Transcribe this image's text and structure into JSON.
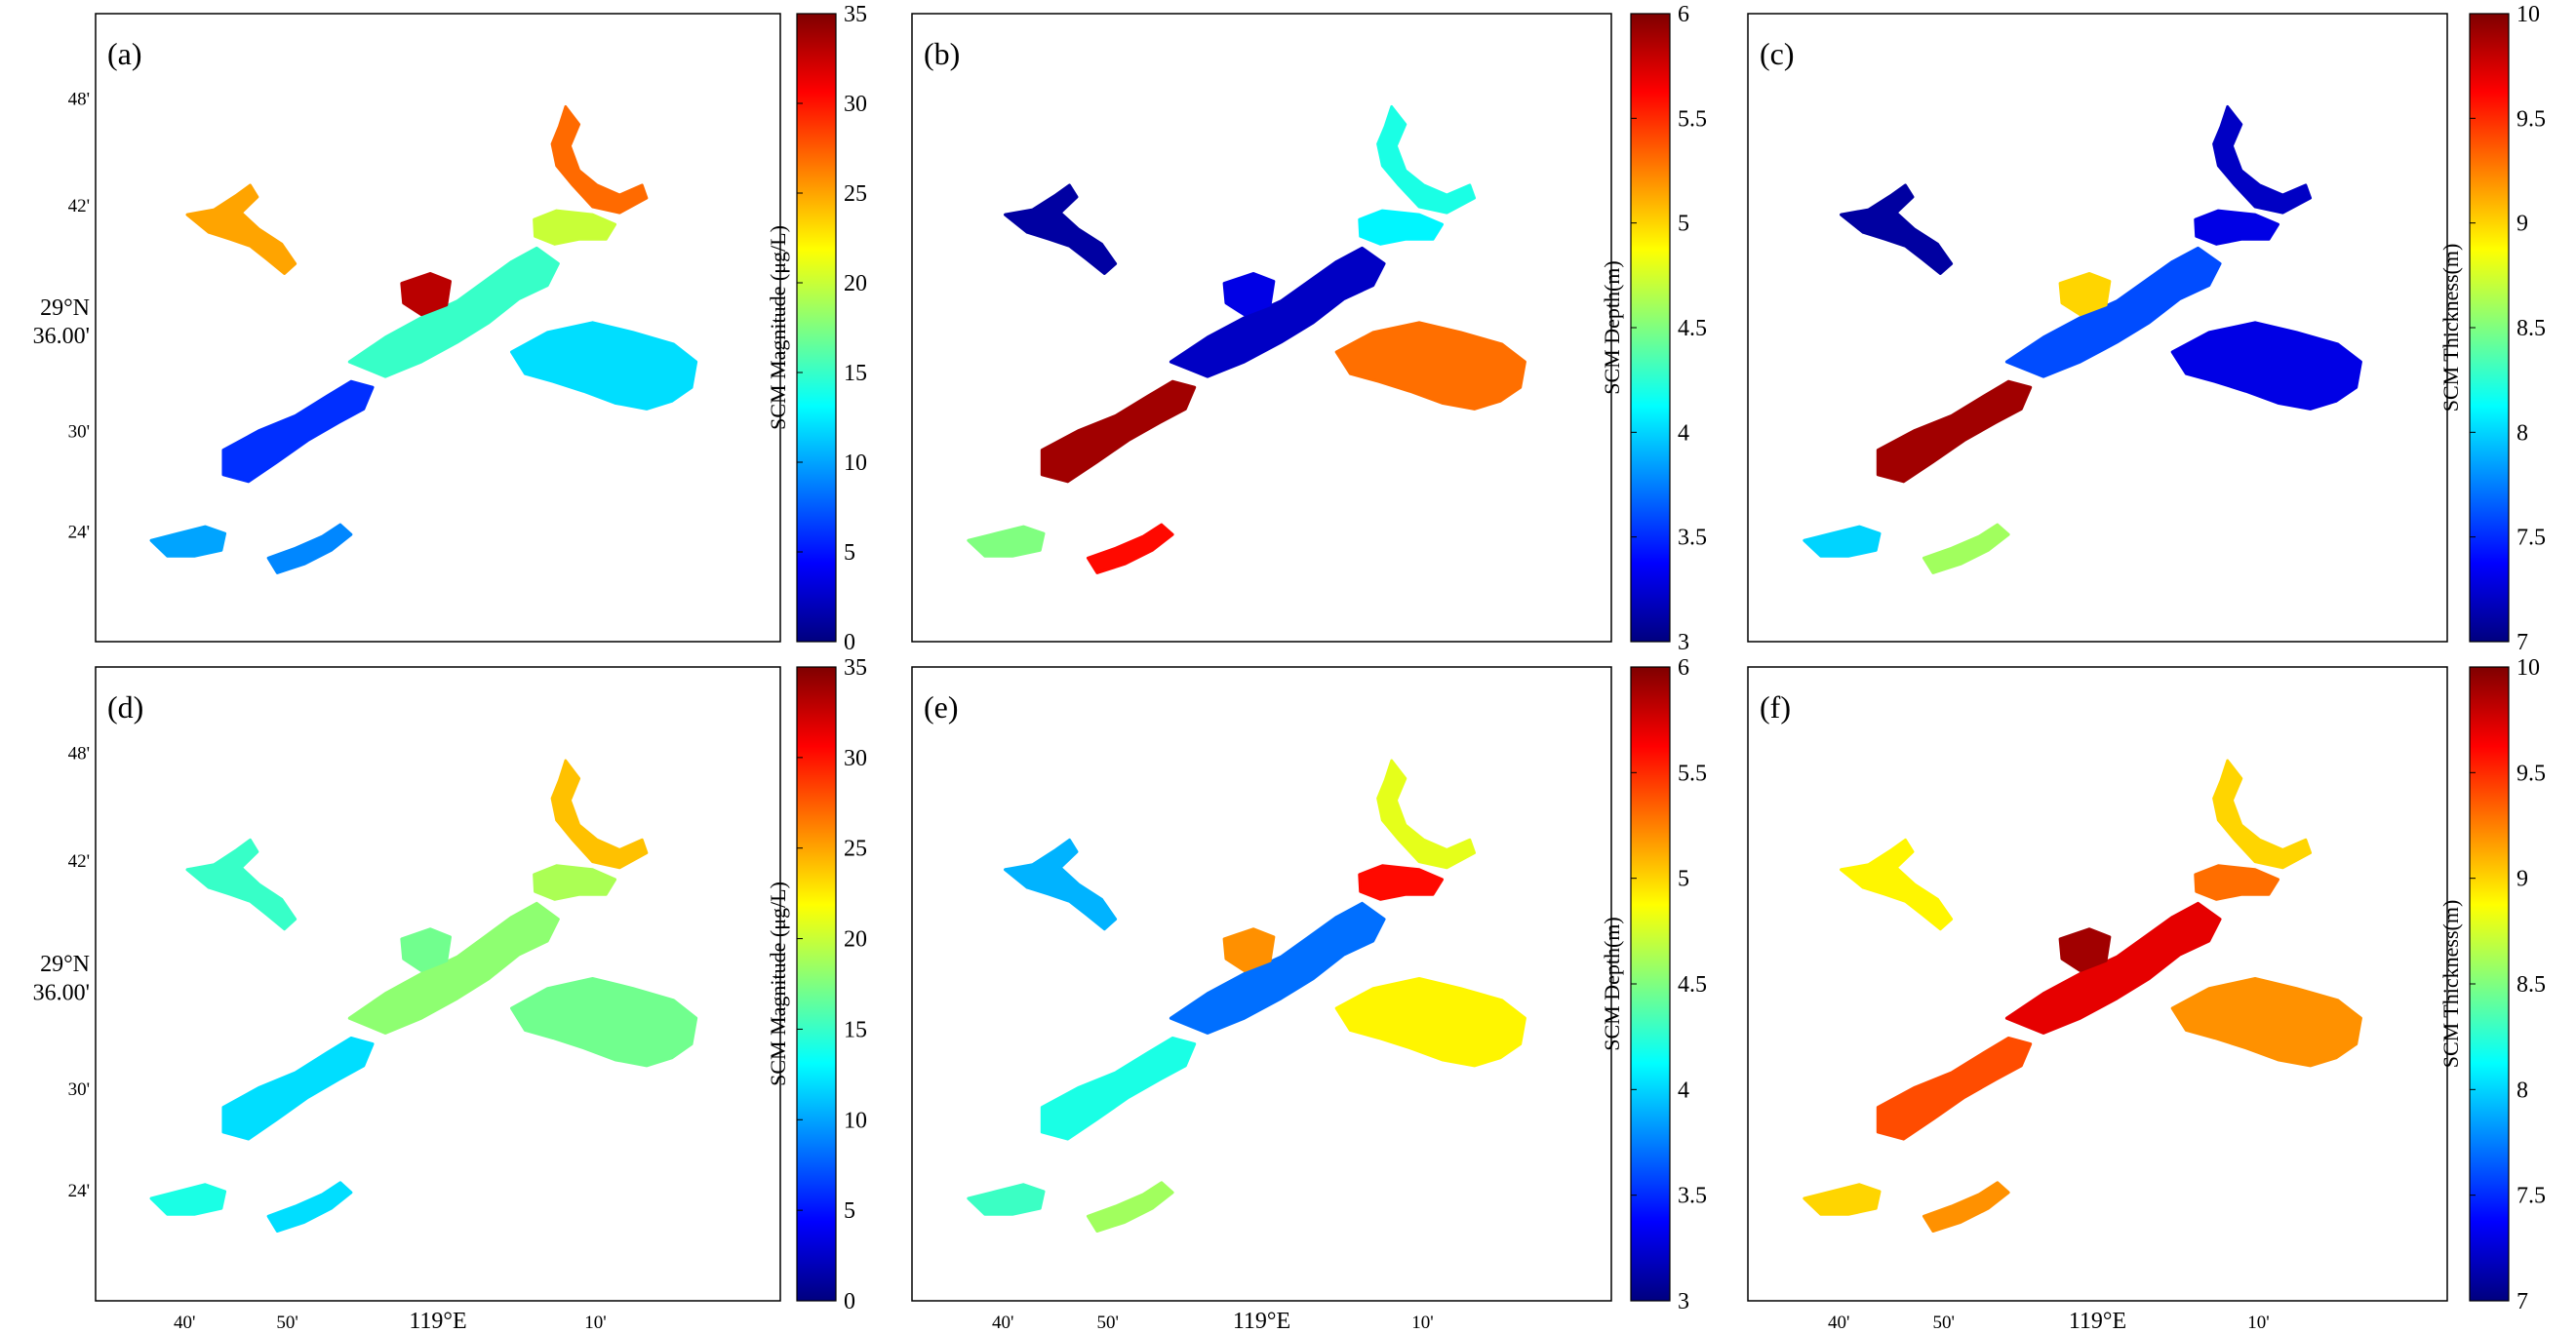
{
  "axes": {
    "lat_ticks": [
      "48'",
      "42'",
      "29°N",
      "36.00'",
      "30'",
      "24'"
    ],
    "lon_ticks": [
      "40'",
      "50'",
      "119°E",
      "10'"
    ]
  },
  "colorbars": {
    "magnitude": {
      "label": "SCM Magnitude (μg/L)",
      "ticks": [
        "0",
        "5",
        "10",
        "15",
        "20",
        "25",
        "30",
        "35"
      ]
    },
    "depth": {
      "label": "SCM Depth(m)",
      "ticks": [
        "3",
        "3.5",
        "4",
        "4.5",
        "5",
        "5.5",
        "6"
      ]
    },
    "thickness": {
      "label": "SCM Thickness(m)",
      "ticks": [
        "7",
        "7.5",
        "8",
        "8.5",
        "9",
        "9.5",
        "10"
      ]
    }
  },
  "panels": [
    {
      "letter": "(a)",
      "variable": "magnitude"
    },
    {
      "letter": "(b)",
      "variable": "depth"
    },
    {
      "letter": "(c)",
      "variable": "thickness"
    },
    {
      "letter": "(d)",
      "variable": "magnitude"
    },
    {
      "letter": "(e)",
      "variable": "depth"
    },
    {
      "letter": "(f)",
      "variable": "thickness"
    }
  ],
  "colors": {
    "jet_low": "#00007f",
    "jet_high": "#7f0000"
  },
  "chart_data": [
    {
      "type": "heatmap",
      "panel": "(a)",
      "variable": "SCM Magnitude",
      "vrange": [
        0,
        35
      ],
      "regions": [
        {
          "name": "northwest-arm",
          "value": 25
        },
        {
          "name": "north-arm-upper",
          "value": 27
        },
        {
          "name": "north-arm-mid",
          "value": 20
        },
        {
          "name": "central-basin",
          "value": 15
        },
        {
          "name": "dam-junction",
          "value": 33
        },
        {
          "name": "west-channel",
          "value": 6
        },
        {
          "name": "east-basin",
          "value": 12
        },
        {
          "name": "southwest-tail",
          "value": 10
        },
        {
          "name": "south-arm",
          "value": 9
        }
      ]
    },
    {
      "type": "heatmap",
      "panel": "(b)",
      "variable": "SCM Depth",
      "vrange": [
        3,
        6
      ],
      "regions": [
        {
          "name": "northwest-arm",
          "value": 3.1
        },
        {
          "name": "north-arm-upper",
          "value": 4.2
        },
        {
          "name": "north-arm-mid",
          "value": 4.1
        },
        {
          "name": "central-basin",
          "value": 3.2
        },
        {
          "name": "dam-junction",
          "value": 3.3
        },
        {
          "name": "west-channel",
          "value": 5.9
        },
        {
          "name": "east-basin",
          "value": 5.3
        },
        {
          "name": "southwest-tail",
          "value": 4.5
        },
        {
          "name": "south-arm",
          "value": 5.6
        }
      ]
    },
    {
      "type": "heatmap",
      "panel": "(c)",
      "variable": "SCM Thickness",
      "vrange": [
        7,
        10
      ],
      "regions": [
        {
          "name": "northwest-arm",
          "value": 7.1
        },
        {
          "name": "north-arm-upper",
          "value": 7.2
        },
        {
          "name": "north-arm-mid",
          "value": 7.3
        },
        {
          "name": "central-basin",
          "value": 7.6
        },
        {
          "name": "dam-junction",
          "value": 9.0
        },
        {
          "name": "west-channel",
          "value": 9.9
        },
        {
          "name": "east-basin",
          "value": 7.3
        },
        {
          "name": "southwest-tail",
          "value": 8.0
        },
        {
          "name": "south-arm",
          "value": 8.6
        }
      ]
    },
    {
      "type": "heatmap",
      "panel": "(d)",
      "variable": "SCM Magnitude",
      "vrange": [
        0,
        35
      ],
      "regions": [
        {
          "name": "northwest-arm",
          "value": 15
        },
        {
          "name": "north-arm-upper",
          "value": 24
        },
        {
          "name": "north-arm-mid",
          "value": 19
        },
        {
          "name": "central-basin",
          "value": 18
        },
        {
          "name": "dam-junction",
          "value": 17
        },
        {
          "name": "west-channel",
          "value": 12
        },
        {
          "name": "east-basin",
          "value": 17
        },
        {
          "name": "southwest-tail",
          "value": 14
        },
        {
          "name": "south-arm",
          "value": 12
        }
      ]
    },
    {
      "type": "heatmap",
      "panel": "(e)",
      "variable": "SCM Depth",
      "vrange": [
        3,
        6
      ],
      "regions": [
        {
          "name": "northwest-arm",
          "value": 3.9
        },
        {
          "name": "north-arm-upper",
          "value": 4.8
        },
        {
          "name": "north-arm-mid",
          "value": 5.6
        },
        {
          "name": "central-basin",
          "value": 3.7
        },
        {
          "name": "dam-junction",
          "value": 5.2
        },
        {
          "name": "west-channel",
          "value": 4.2
        },
        {
          "name": "east-basin",
          "value": 4.9
        },
        {
          "name": "southwest-tail",
          "value": 4.3
        },
        {
          "name": "south-arm",
          "value": 4.6
        }
      ]
    },
    {
      "type": "heatmap",
      "panel": "(f)",
      "variable": "SCM Thickness",
      "vrange": [
        7,
        10
      ],
      "regions": [
        {
          "name": "northwest-arm",
          "value": 8.9
        },
        {
          "name": "north-arm-upper",
          "value": 9.0
        },
        {
          "name": "north-arm-mid",
          "value": 9.3
        },
        {
          "name": "central-basin",
          "value": 9.7
        },
        {
          "name": "dam-junction",
          "value": 9.9
        },
        {
          "name": "west-channel",
          "value": 9.4
        },
        {
          "name": "east-basin",
          "value": 9.2
        },
        {
          "name": "southwest-tail",
          "value": 9.0
        },
        {
          "name": "south-arm",
          "value": 9.2
        }
      ]
    }
  ]
}
